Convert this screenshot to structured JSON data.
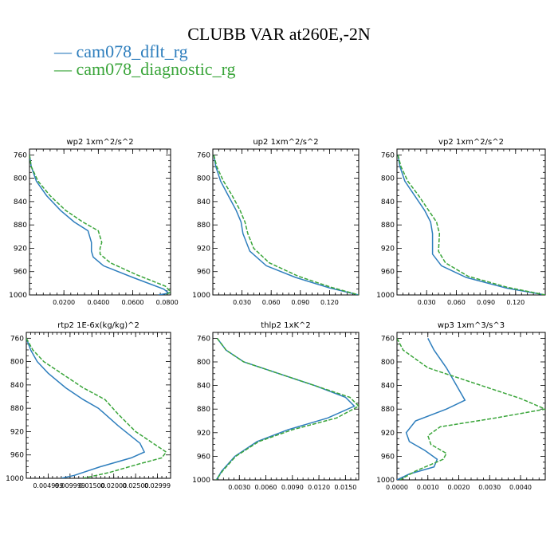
{
  "figure": {
    "title": "CLUBB VAR at260E,-2N",
    "legend": [
      {
        "label": "— cam078_dflt_rg",
        "color": "#2e7ebd"
      },
      {
        "label": "— cam078_diagnostic_rg",
        "color": "#3aa53a"
      }
    ]
  },
  "chart_data": [
    {
      "type": "line",
      "title": "wp2   1xm^2/s^2",
      "ylim": [
        1000,
        750
      ],
      "yticks": [
        760,
        800,
        840,
        880,
        920,
        960,
        1000
      ],
      "xlim": [
        0.0,
        0.082
      ],
      "xticks": [
        0.02,
        0.04,
        0.06,
        0.08
      ],
      "xticklabels": [
        "0.0200",
        "0.0400",
        "0.0600",
        "0.0800"
      ],
      "series": [
        {
          "name": "cam078_dflt_rg",
          "color": "#2e7ebd",
          "dash": "",
          "x": [
            0.0,
            0.001,
            0.004,
            0.01,
            0.018,
            0.026,
            0.034,
            0.036,
            0.036,
            0.037,
            0.043,
            0.06,
            0.078,
            0.081,
            0.075
          ],
          "y": [
            760,
            780,
            805,
            830,
            855,
            875,
            890,
            910,
            925,
            935,
            950,
            970,
            990,
            997,
            1000
          ]
        },
        {
          "name": "cam078_diagnostic_rg",
          "color": "#3aa53a",
          "dash": "5,2",
          "x": [
            0.0,
            0.001,
            0.005,
            0.012,
            0.021,
            0.031,
            0.04,
            0.042,
            0.041,
            0.041,
            0.047,
            0.062,
            0.079,
            0.082,
            0.079
          ],
          "y": [
            760,
            780,
            805,
            830,
            855,
            875,
            890,
            910,
            920,
            930,
            945,
            965,
            985,
            995,
            1000
          ]
        }
      ]
    },
    {
      "type": "line",
      "title": "up2   1xm^2/s^2",
      "ylim": [
        1000,
        750
      ],
      "yticks": [
        760,
        800,
        840,
        880,
        920,
        960,
        1000
      ],
      "xlim": [
        0.0,
        0.15
      ],
      "xticks": [
        0.03,
        0.06,
        0.09,
        0.12
      ],
      "xticklabels": [
        "0.030",
        "0.060",
        "0.090",
        "0.120"
      ],
      "series": [
        {
          "name": "cam078_dflt_rg",
          "color": "#2e7ebd",
          "dash": "",
          "x": [
            0.001,
            0.003,
            0.008,
            0.016,
            0.024,
            0.029,
            0.031,
            0.038,
            0.055,
            0.085,
            0.12,
            0.15
          ],
          "y": [
            760,
            780,
            805,
            830,
            855,
            875,
            895,
            925,
            950,
            970,
            988,
            1000
          ]
        },
        {
          "name": "cam078_diagnostic_rg",
          "color": "#3aa53a",
          "dash": "5,2",
          "x": [
            0.001,
            0.004,
            0.011,
            0.02,
            0.028,
            0.033,
            0.036,
            0.042,
            0.058,
            0.088,
            0.122,
            0.15
          ],
          "y": [
            760,
            780,
            805,
            830,
            855,
            875,
            895,
            920,
            945,
            968,
            987,
            1000
          ]
        }
      ]
    },
    {
      "type": "line",
      "title": "vp2   1xm^2/s^2",
      "ylim": [
        1000,
        750
      ],
      "yticks": [
        760,
        800,
        840,
        880,
        920,
        960,
        1000
      ],
      "xlim": [
        0.0,
        0.15
      ],
      "xticks": [
        0.03,
        0.06,
        0.09,
        0.12
      ],
      "xticklabels": [
        "0.030",
        "0.060",
        "0.090",
        "0.120"
      ],
      "series": [
        {
          "name": "cam078_dflt_rg",
          "color": "#2e7ebd",
          "dash": "",
          "x": [
            0.001,
            0.003,
            0.008,
            0.018,
            0.028,
            0.034,
            0.036,
            0.036,
            0.045,
            0.07,
            0.11,
            0.15
          ],
          "y": [
            760,
            780,
            805,
            830,
            855,
            875,
            895,
            930,
            950,
            970,
            988,
            1000
          ]
        },
        {
          "name": "cam078_diagnostic_rg",
          "color": "#3aa53a",
          "dash": "5,2",
          "x": [
            0.001,
            0.004,
            0.011,
            0.022,
            0.032,
            0.04,
            0.043,
            0.042,
            0.049,
            0.072,
            0.112,
            0.15
          ],
          "y": [
            760,
            780,
            805,
            830,
            855,
            875,
            895,
            925,
            945,
            968,
            987,
            1000
          ]
        }
      ]
    },
    {
      "type": "line",
      "title": "rtp2   1E-6x(kg/kg)^2",
      "ylim": [
        1000,
        750
      ],
      "yticks": [
        760,
        800,
        840,
        880,
        920,
        960,
        1000
      ],
      "xlim": [
        0.0,
        0.033
      ],
      "xticks": [
        0.005,
        0.01,
        0.015,
        0.02,
        0.025,
        0.03
      ],
      "xticklabels": [
        "0.004999",
        "0.009999",
        "0.01500",
        "0.02000",
        "0.02500",
        "0.02999"
      ],
      "series": [
        {
          "name": "cam078_dflt_rg",
          "color": "#2e7ebd",
          "dash": "",
          "x": [
            0.0,
            0.001,
            0.0025,
            0.005,
            0.009,
            0.013,
            0.0165,
            0.021,
            0.026,
            0.027,
            0.024,
            0.017,
            0.011,
            0.008
          ],
          "y": [
            760,
            780,
            800,
            820,
            845,
            865,
            880,
            910,
            940,
            955,
            965,
            980,
            995,
            1000
          ]
        },
        {
          "name": "cam078_diagnostic_rg",
          "color": "#3aa53a",
          "dash": "5,2",
          "x": [
            0.0,
            0.0015,
            0.004,
            0.008,
            0.013,
            0.018,
            0.021,
            0.025,
            0.029,
            0.032,
            0.031,
            0.026,
            0.019,
            0.013
          ],
          "y": [
            760,
            780,
            800,
            820,
            845,
            865,
            890,
            920,
            940,
            955,
            965,
            975,
            990,
            1000
          ]
        }
      ]
    },
    {
      "type": "line",
      "title": "thlp2   1xK^2",
      "ylim": [
        1000,
        750
      ],
      "yticks": [
        760,
        800,
        840,
        880,
        920,
        960,
        1000
      ],
      "xlim": [
        0.0,
        0.0165
      ],
      "xticks": [
        0.003,
        0.006,
        0.009,
        0.012,
        0.015
      ],
      "xticklabels": [
        "0.0030",
        "0.0060",
        "0.0090",
        "0.0120",
        "0.0150"
      ],
      "series": [
        {
          "name": "cam078_dflt_rg",
          "color": "#2e7ebd",
          "dash": "",
          "x": [
            0.0005,
            0.0015,
            0.0035,
            0.0075,
            0.0115,
            0.015,
            0.016,
            0.013,
            0.0085,
            0.005,
            0.0025,
            0.001,
            0.0004
          ],
          "y": [
            760,
            780,
            800,
            820,
            840,
            860,
            875,
            895,
            915,
            935,
            960,
            985,
            1000
          ]
        },
        {
          "name": "cam078_diagnostic_rg",
          "color": "#3aa53a",
          "dash": "5,2",
          "x": [
            0.0005,
            0.0015,
            0.0035,
            0.0075,
            0.0115,
            0.0155,
            0.0165,
            0.014,
            0.009,
            0.0052,
            0.0026,
            0.0011,
            0.0004
          ],
          "y": [
            760,
            780,
            800,
            820,
            840,
            860,
            875,
            895,
            915,
            935,
            960,
            985,
            1000
          ]
        }
      ]
    },
    {
      "type": "line",
      "title": "wp3   1xm^3/s^3",
      "ylim": [
        1000,
        750
      ],
      "yticks": [
        760,
        800,
        840,
        880,
        920,
        960,
        1000
      ],
      "xlim": [
        0.0,
        0.0048
      ],
      "xticks": [
        0.0,
        0.001,
        0.002,
        0.003,
        0.004
      ],
      "xticklabels": [
        "0.0000",
        "0.0010",
        "0.0020",
        "0.0030",
        "0.0040"
      ],
      "series": [
        {
          "name": "cam078_dflt_rg",
          "color": "#2e7ebd",
          "dash": "",
          "x": [
            0.001,
            0.0012,
            0.0016,
            0.0022,
            0.0016,
            0.0006,
            0.0003,
            0.0004,
            0.0009,
            0.0013,
            0.0012,
            0.0004,
            0.0
          ],
          "y": [
            760,
            780,
            810,
            865,
            880,
            900,
            920,
            935,
            950,
            965,
            978,
            990,
            1000
          ]
        },
        {
          "name": "cam078_diagnostic_rg",
          "color": "#3aa53a",
          "dash": "5,2",
          "x": [
            0.0,
            0.0002,
            0.001,
            0.004,
            0.0048,
            0.0032,
            0.0014,
            0.001,
            0.0011,
            0.0016,
            0.0015,
            0.0006,
            0.0001
          ],
          "y": [
            760,
            780,
            810,
            862,
            880,
            895,
            910,
            925,
            940,
            955,
            965,
            985,
            1000
          ]
        }
      ]
    }
  ]
}
